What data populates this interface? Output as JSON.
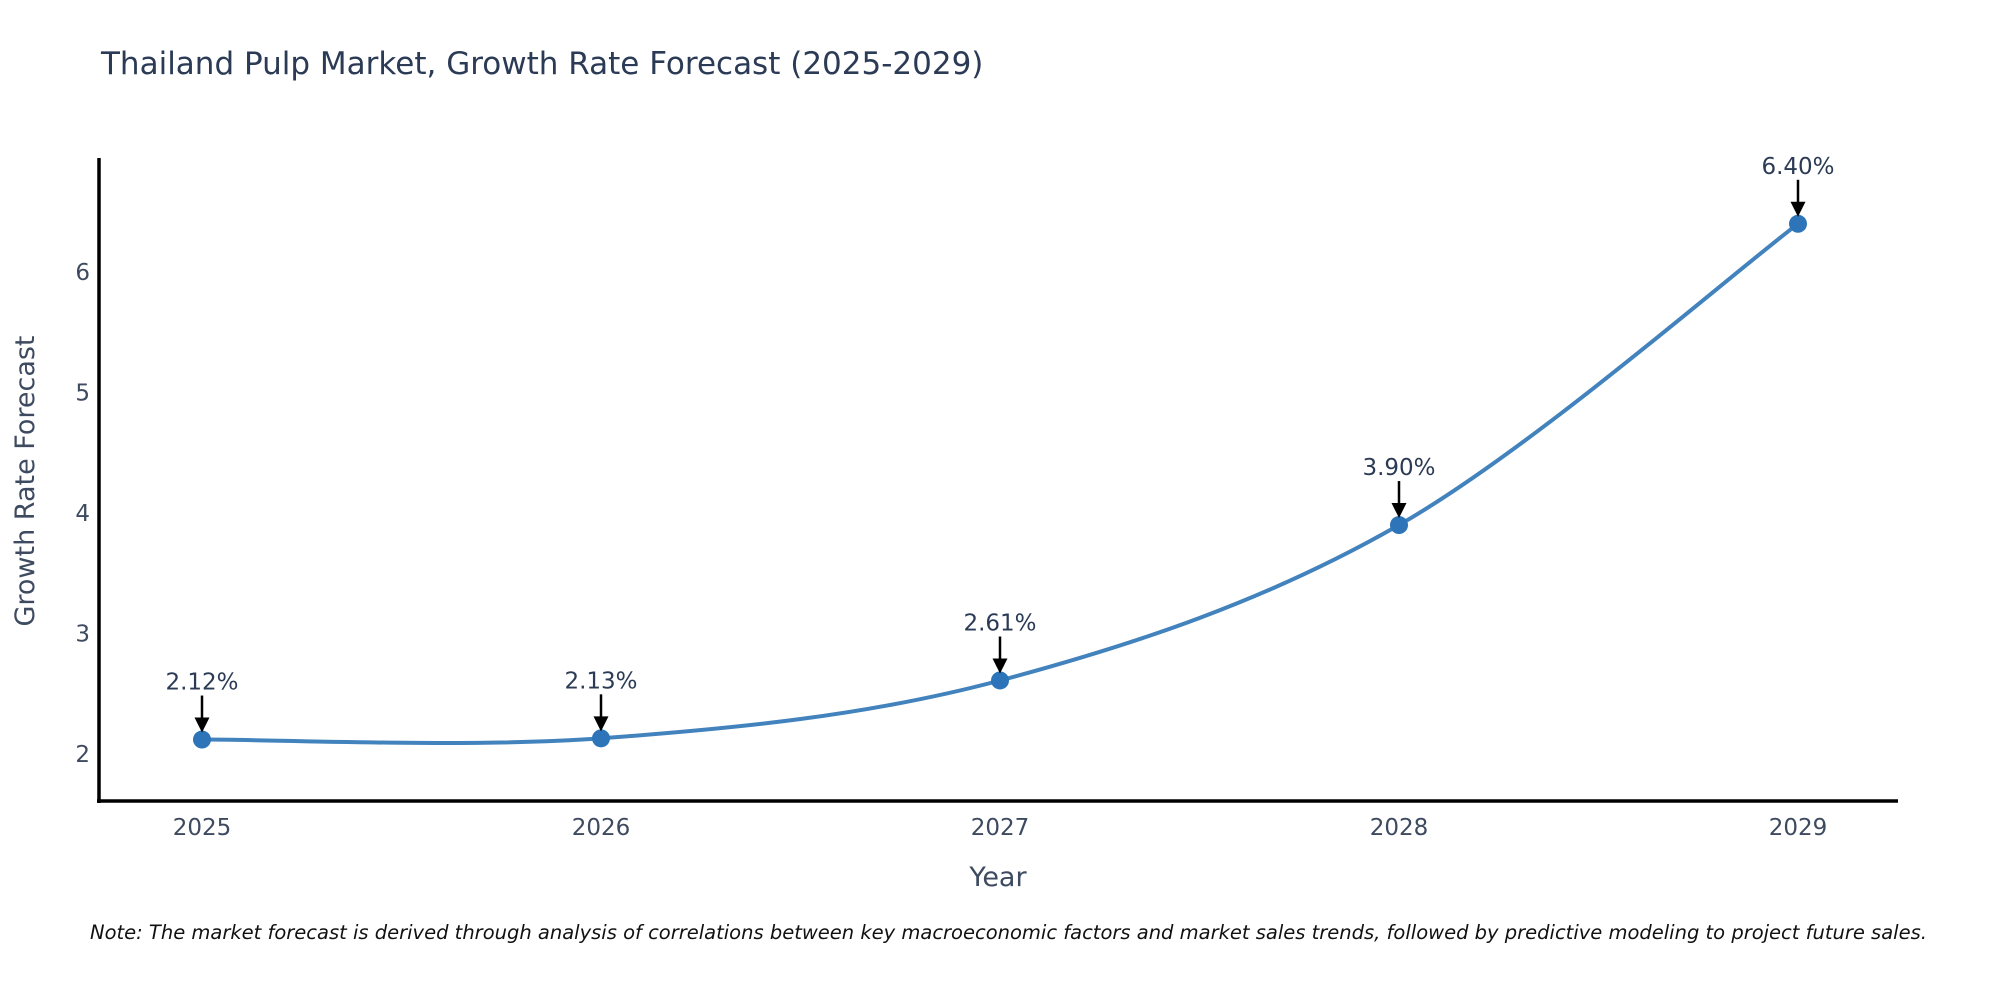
{
  "chart_data": {
    "type": "line",
    "title": "Thailand Pulp Market, Growth Rate Forecast (2025-2029)",
    "xlabel": "Year",
    "ylabel": "Growth Rate Forecast",
    "categories": [
      "2025",
      "2026",
      "2027",
      "2028",
      "2029"
    ],
    "x": [
      2025,
      2026,
      2027,
      2028,
      2029
    ],
    "values": [
      2.12,
      2.13,
      2.61,
      3.9,
      6.4
    ],
    "point_labels": [
      "2.12%",
      "2.13%",
      "2.61%",
      "3.90%",
      "6.40%"
    ],
    "y_ticks": [
      2,
      3,
      4,
      5,
      6
    ],
    "ylim": [
      1.61,
      6.95
    ],
    "grid": false,
    "legend": "none",
    "curve": "spline",
    "line_color": "#4282bd",
    "marker_color": "#2d74b8",
    "arrow_color": "#000000",
    "spine_color": "#000000"
  },
  "note": "Note: The market forecast is derived through analysis of correlations between key macroeconomic factors and market sales trends, followed by predictive modeling to project future sales."
}
